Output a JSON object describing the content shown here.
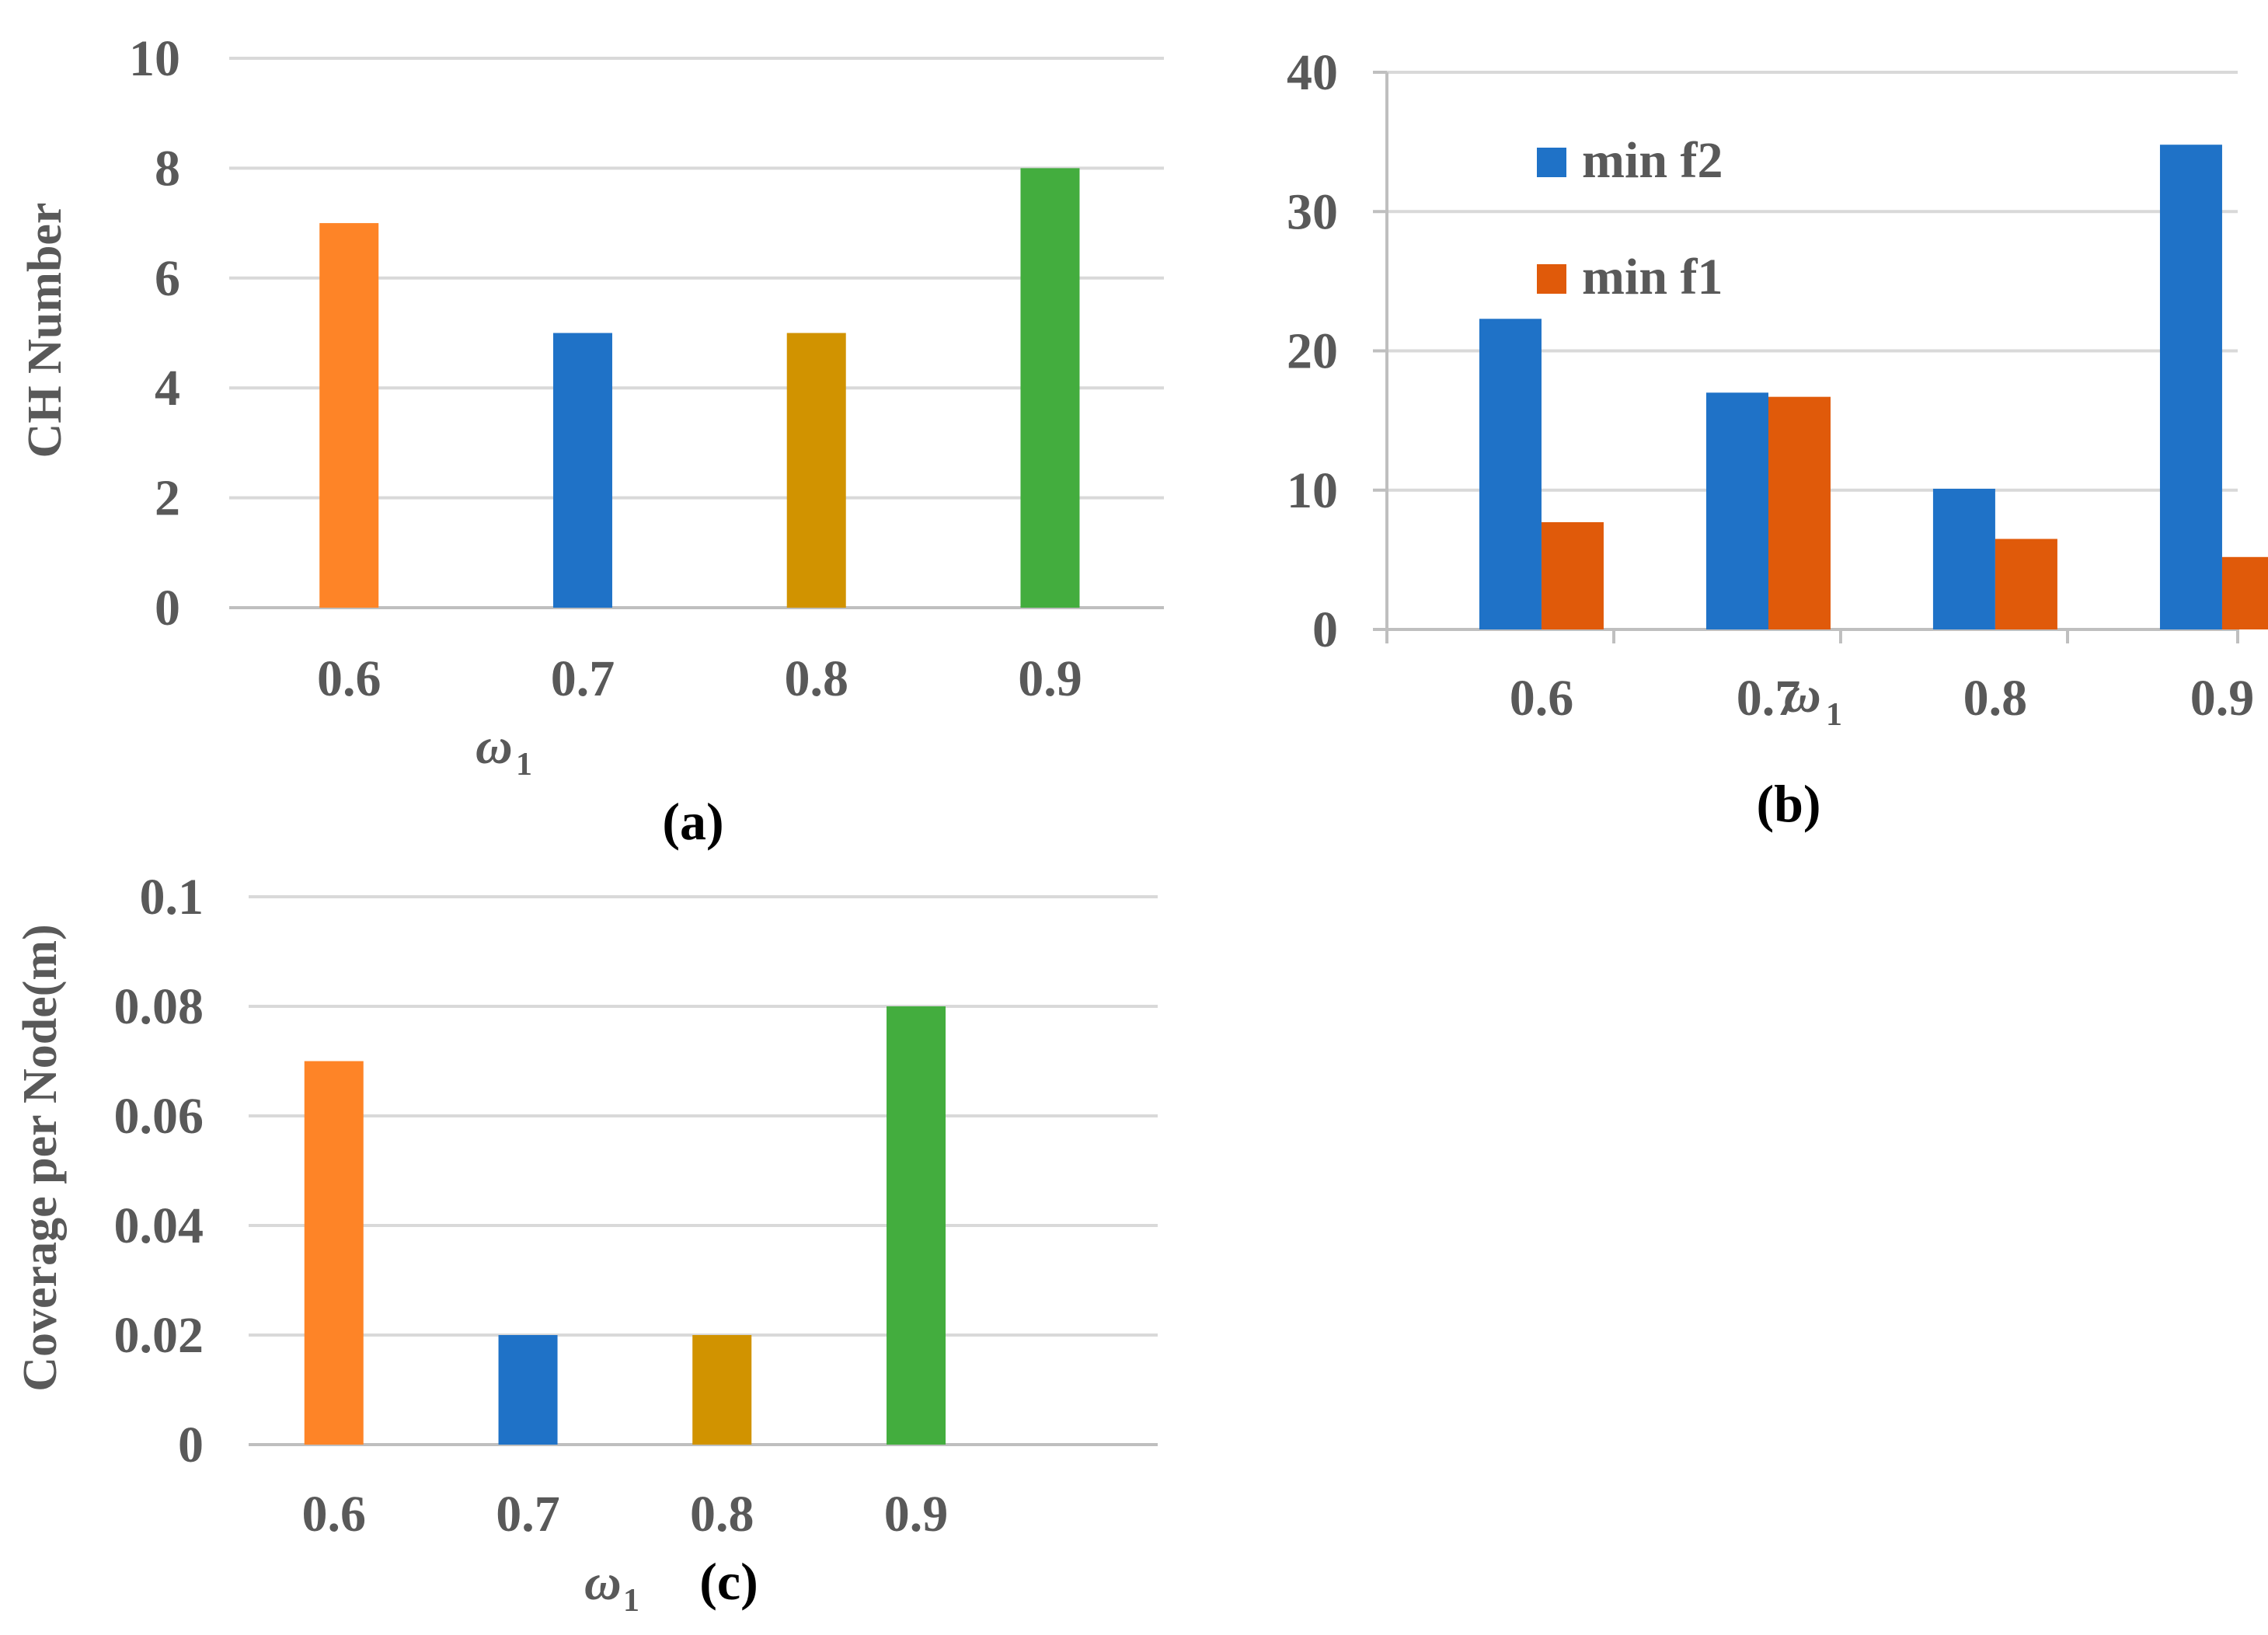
{
  "chart_data": [
    {
      "id": "a",
      "type": "bar",
      "panel_label": "(a)",
      "categories": [
        "0.6",
        "0.7",
        "0.8",
        "0.9"
      ],
      "values": [
        7,
        5,
        5,
        8
      ],
      "bar_colors": [
        "#fe8427",
        "#1f72c7",
        "#d19300",
        "#43ad3e"
      ],
      "ylabel": "CH Number",
      "xlabel": {
        "symbol": "ω",
        "subscript": "1"
      },
      "ylim": [
        0,
        10
      ],
      "yticks": [
        "0",
        "2",
        "4",
        "6",
        "8",
        "10"
      ],
      "grid": true
    },
    {
      "id": "b",
      "type": "bar",
      "panel_label": "(b)",
      "categories": [
        "0.6",
        "0.7",
        "0.8",
        "0.9"
      ],
      "series": [
        {
          "name": "min f2",
          "values": [
            22.3,
            17.0,
            10.1,
            34.8
          ],
          "color": "#1f72c7"
        },
        {
          "name": "min f1",
          "values": [
            7.7,
            16.7,
            6.5,
            5.2
          ],
          "color": "#e05a0a"
        }
      ],
      "xlabel": {
        "symbol": "ω",
        "subscript": "1"
      },
      "ylim": [
        0,
        40
      ],
      "yticks": [
        "0",
        "10",
        "20",
        "30",
        "40"
      ],
      "legend": [
        "min f2",
        "min f1"
      ],
      "legend_position": "top-left",
      "grid": true
    },
    {
      "id": "c",
      "type": "bar",
      "panel_label": "(c)",
      "categories": [
        "0.6",
        "0.7",
        "0.8",
        "0.9"
      ],
      "values": [
        0.07,
        0.02,
        0.02,
        0.08
      ],
      "bar_colors": [
        "#fe8427",
        "#1f72c7",
        "#d19300",
        "#43ad3e"
      ],
      "ylabel": "Coverage per Node(m)",
      "xlabel": {
        "symbol": "ω",
        "subscript": "1"
      },
      "ylim": [
        0,
        0.1
      ],
      "yticks": [
        "0",
        "0.02",
        "0.04",
        "0.06",
        "0.08",
        "0.1"
      ],
      "grid": true
    }
  ]
}
